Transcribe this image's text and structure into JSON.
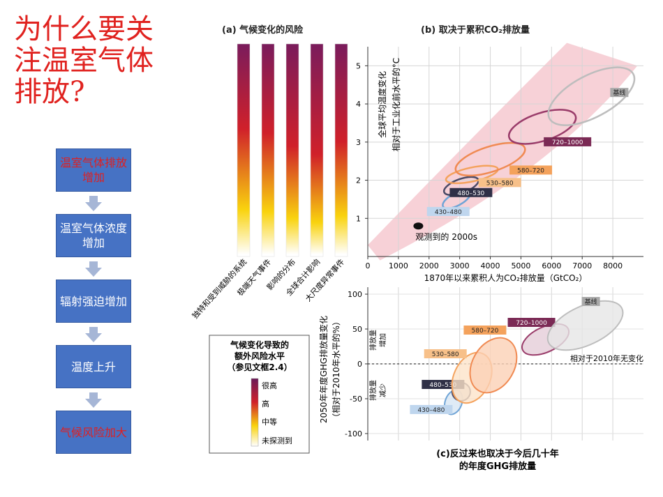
{
  "title": "为什么要关注温室气体排放?",
  "flow": [
    "温室气体排放增加",
    "温室气体浓度增加",
    "辐射强迫增加",
    "温度上升",
    "气候风险加大"
  ],
  "panel_a": {
    "title": "(a) 气候变化的风险",
    "bars": [
      "独特和受到威胁的系统",
      "极端天气事件",
      "影响的分布",
      "全球合计影响",
      "大尺度异常事件"
    ],
    "legend_title": [
      "气候变化导致的",
      "额外风险水平",
      "（参见文框2.4）"
    ],
    "legend_levels": [
      "很高",
      "高",
      "中等",
      "未探测到"
    ]
  },
  "panel_b": {
    "title": "(b) 取决于累积CO₂排放量",
    "xlabel": "1870年以来累积人为CO₂排放量（GtCO₂）",
    "ylabel_lines": [
      "全球平均温度变化",
      "相对于工业化前水平的°C"
    ],
    "observed_label": "观测到的 2000s"
  },
  "panel_c": {
    "title_lines": [
      "(c)反过来也取决于今后几十年",
      "的年度GHG排放量"
    ],
    "ylabel_lines": [
      "2050年年度GHG排放量变化",
      "（相对于2010年水平的%）"
    ],
    "increase_label": [
      "排放量",
      "增加"
    ],
    "decrease_label": [
      "排放量",
      "减少"
    ],
    "reference_label": "相对于2010年无变化"
  },
  "colors": {
    "title_red": "#e0221f",
    "flow_blue": "#4672c4",
    "plume_pink": "#f6c9d0"
  },
  "chart_data": [
    {
      "type": "table",
      "title": "(a) 气候变化的风险",
      "categories": [
        "独特和受到威胁的系统",
        "极端天气事件",
        "影响的分布",
        "全球合计影响",
        "大尺度异常事件"
      ],
      "risk_levels": [
        "很高",
        "高",
        "中等",
        "未探测到"
      ]
    },
    {
      "type": "scatter",
      "title": "(b) 取决于累积CO₂排放量",
      "xlabel": "1870年以来累积人为CO₂排放量（GtCO₂）",
      "ylabel": "全球平均温度变化 相对于工业化前水平的°C",
      "xlim": [
        0,
        9000
      ],
      "ylim": [
        0,
        5.5
      ],
      "xticks": [
        0,
        1000,
        2000,
        3000,
        4000,
        5000,
        6000,
        7000,
        8000
      ],
      "yticks": [
        1,
        2,
        3,
        4,
        5
      ],
      "observed": {
        "label": "观测到的 2000s",
        "x": 1650,
        "y": 0.8
      },
      "series": [
        {
          "name": "430–480",
          "x": 2900,
          "y": 1.5,
          "color": "#6fa4d6",
          "label_color": "#bfd6ee"
        },
        {
          "name": "480–530",
          "x": 3050,
          "y": 1.85,
          "color": "#4b4a66",
          "label_color": "#2f3047"
        },
        {
          "name": "530–580",
          "x": 3400,
          "y": 2.15,
          "color": "#f4a25c",
          "label_color": "#f7c089"
        },
        {
          "name": "580–720",
          "x": 4000,
          "y": 2.55,
          "color": "#f08a52",
          "label_color": "#f4a25c"
        },
        {
          "name": "720–1000",
          "x": 5700,
          "y": 3.4,
          "color": "#9a3c6a",
          "label_color": "#7b2a55"
        },
        {
          "name": "基线",
          "x": 7300,
          "y": 4.2,
          "color": "#bdbdbd",
          "label_color": "#a9a9a9"
        }
      ]
    },
    {
      "type": "scatter",
      "title": "(c)反过来也取决于今后几十年的年度GHG排放量",
      "ylabel": "2050年年度GHG排放量变化（相对于2010年水平的%）",
      "xlim": [
        0,
        9000
      ],
      "ylim": [
        -110,
        110
      ],
      "yticks": [
        -100,
        -50,
        0,
        50,
        100
      ],
      "reference_line": {
        "y": 0,
        "label": "相对于2010年无变化"
      },
      "series": [
        {
          "name": "430–480",
          "x": 2800,
          "y": -55
        },
        {
          "name": "480–530",
          "x": 3050,
          "y": -40
        },
        {
          "name": "530–580",
          "x": 3400,
          "y": -20
        },
        {
          "name": "580–720",
          "x": 4100,
          "y": -2
        },
        {
          "name": "720–1000",
          "x": 5800,
          "y": 35
        },
        {
          "name": "基线",
          "x": 7100,
          "y": 55
        }
      ]
    }
  ]
}
